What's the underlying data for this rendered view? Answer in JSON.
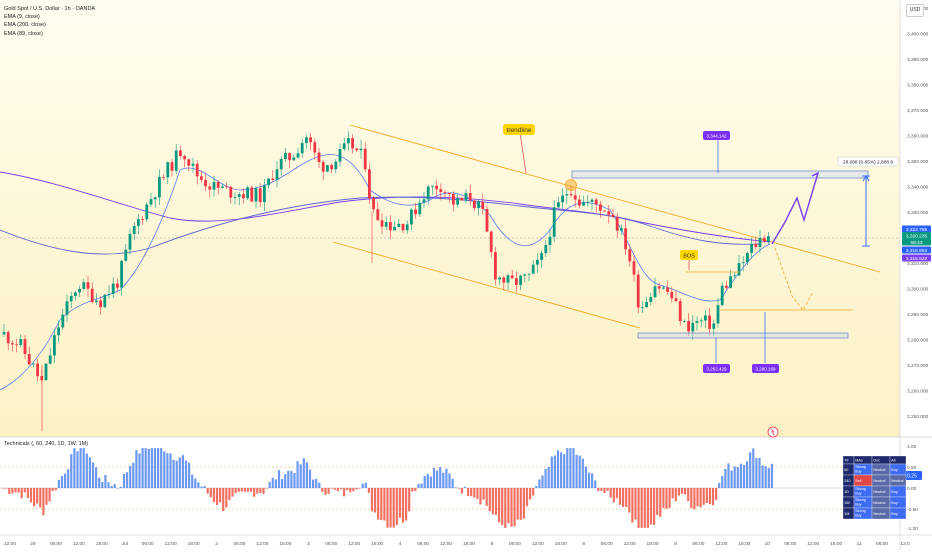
{
  "header": {
    "title": "Gold Spot / U.S. Dollar · 1h · OANDA",
    "indicators": [
      "EMA (9, close)",
      "EMA (200, close)",
      "EMA (89, close)"
    ],
    "currency": "USD"
  },
  "chart_data": {
    "type": "candlestick",
    "title": "Gold Spot / U.S. Dollar · 1h · OANDA",
    "ylim": [
      3245,
      3415
    ],
    "y_ticks": [
      "3,410.000",
      "3,400.000",
      "3,390.000",
      "3,380.000",
      "3,370.000",
      "3,360.000",
      "3,350.000",
      "3,340.000",
      "3,330.000",
      "3,320.000",
      "3,310.000",
      "3,300.000",
      "3,290.000",
      "3,280.000",
      "3,270.000",
      "3,260.000",
      "3,250.000"
    ],
    "x_ticks": [
      "12:00",
      "29",
      "06:00",
      "12:00",
      "18:00",
      "Jul",
      "06:00",
      "12:00",
      "18:00",
      "2",
      "06:00",
      "12:00",
      "18:00",
      "3",
      "06:00",
      "12:00",
      "18:00",
      "4",
      "06:00",
      "12:00",
      "18:00",
      "6",
      "06:00",
      "12:00",
      "18:00",
      "8",
      "06:00",
      "12:00",
      "18:00",
      "9",
      "06:00",
      "12:00",
      "18:00",
      "10",
      "06:00",
      "12:00",
      "18:00",
      "11",
      "06:00",
      "12:0"
    ],
    "price_badges": [
      {
        "label": "3,322.785",
        "color": "#2962ff"
      },
      {
        "label": "3,320.235",
        "color": "#089981"
      },
      {
        "label": "58:43",
        "color": "#089981"
      },
      {
        "label": "3,316.853",
        "color": "#2962ff"
      },
      {
        "label": "3,315.522",
        "color": "#7b3ff2"
      }
    ],
    "close_price": 3322.785,
    "annotations": {
      "trendline": "trendline",
      "bos": "BOS",
      "level_high": "3,344.142",
      "level_low": "3,282.429",
      "level_mid": "3,290.169",
      "measure": "28.088 (0.85%) 2,808.8"
    },
    "series": [
      {
        "name": "EMA (9, close)",
        "color": "#2962ff"
      },
      {
        "name": "EMA (200, close)",
        "color": "#7b3ff2"
      },
      {
        "name": "EMA (89, close)",
        "color": "#5a67d8"
      }
    ],
    "technicals": {
      "title": "Technicals (, 60, 240, 1D, 1W, 1M)",
      "y_ticks": [
        "1.00",
        "0.50",
        "0.00",
        "-0.50",
        "-1.00"
      ],
      "current_value": "0.25"
    }
  },
  "ratings_table": {
    "headers": [
      "TF",
      "MAs",
      "Osc",
      "All"
    ],
    "rows": [
      [
        "60",
        "Strong Buy",
        "Neutral",
        "Buy"
      ],
      [
        "240",
        "Sell",
        "Neutral",
        "Neutral"
      ],
      [
        "1D",
        "Strong Buy",
        "Neutral",
        "Buy"
      ],
      [
        "1W",
        "Strong Buy",
        "Neutral",
        "Buy"
      ],
      [
        "1M",
        "Strong Buy",
        "Neutral",
        "Buy"
      ]
    ]
  },
  "colors": {
    "up": "#089981",
    "down": "#f23645",
    "ema9": "#2962ff",
    "ema200": "#7b3ff2",
    "channel": "#f5a623",
    "hist_up": "#5b8def",
    "hist_down": "#f06050"
  }
}
